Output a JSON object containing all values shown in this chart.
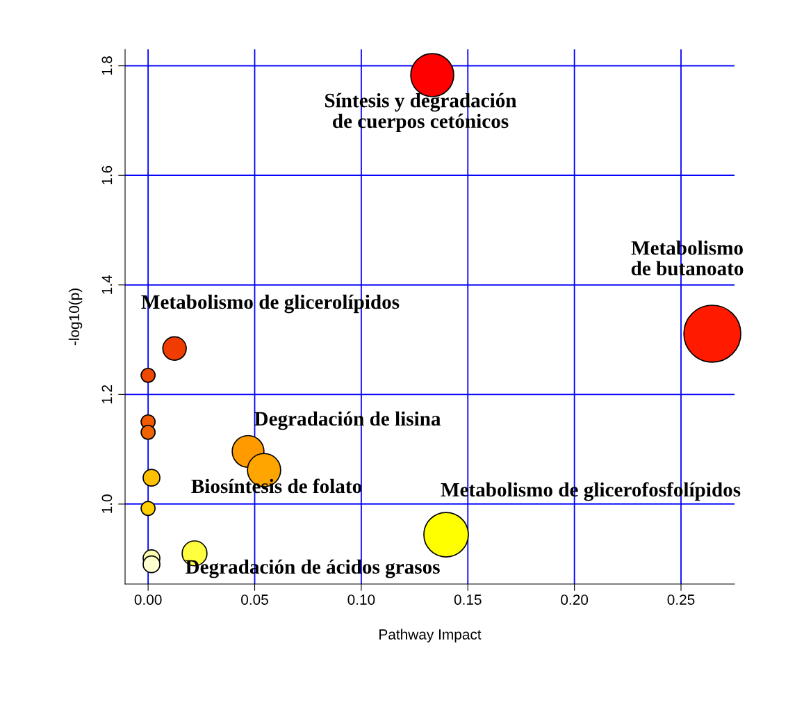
{
  "chart_data": {
    "type": "bubble",
    "xlabel": "Pathway Impact",
    "ylabel": "-log10(p)",
    "x": [
      0.1333,
      0.2647,
      0.0124,
      0.0,
      0.0,
      0.0,
      0.0469,
      0.0544,
      0.0016,
      0.0,
      0.1398,
      0.0218,
      0.0016,
      0.0016
    ],
    "values": [
      1.783,
      1.311,
      1.284,
      1.235,
      1.15,
      1.131,
      1.096,
      1.062,
      1.048,
      0.992,
      0.944,
      0.91,
      0.901,
      0.89
    ],
    "sizes": [
      0.57,
      1,
      0.17,
      0.06,
      0.06,
      0.06,
      0.31,
      0.34,
      0.086,
      0.06,
      0.61,
      0.19,
      0.086,
      0.086
    ],
    "colors": [
      "#ff0000",
      "#ff1a00",
      "#f03c00",
      "#f04800",
      "#f05a00",
      "#f06400",
      "#ff9a00",
      "#ffa500",
      "#ffc000",
      "#ffd000",
      "#ffff00",
      "#ffff40",
      "#ffffb0",
      "#ffffd0"
    ],
    "xlim": [
      -0.0108,
      0.2751
    ],
    "ylim": [
      0.854,
      1.83
    ],
    "xticks": [
      {
        "value": 0,
        "label": "0.00"
      },
      {
        "value": 0.05,
        "label": "0.05"
      },
      {
        "value": 0.1,
        "label": "0.10"
      },
      {
        "value": 0.15,
        "label": "0.15"
      },
      {
        "value": 0.2,
        "label": "0.20"
      },
      {
        "value": 0.25,
        "label": "0.25"
      }
    ],
    "yticks": [
      {
        "value": 1.0,
        "label": "1.0"
      },
      {
        "value": 1.2,
        "label": "1.2"
      },
      {
        "value": 1.4,
        "label": "1.4"
      },
      {
        "value": 1.6,
        "label": "1.6"
      },
      {
        "value": 1.8,
        "label": "1.8"
      }
    ],
    "grid": true,
    "marker": "circle",
    "annotations": [
      "Síntesis y degradación\nde cuerpos cetónicos",
      "Metabolismo\nde butanoato",
      "Metabolismo de glicerolípidos",
      "Degradación de lisina",
      "Biosíntesis de folato",
      "Metabolismo de glicerofosfolípidos",
      "Degradación de ácidos grasos"
    ]
  }
}
